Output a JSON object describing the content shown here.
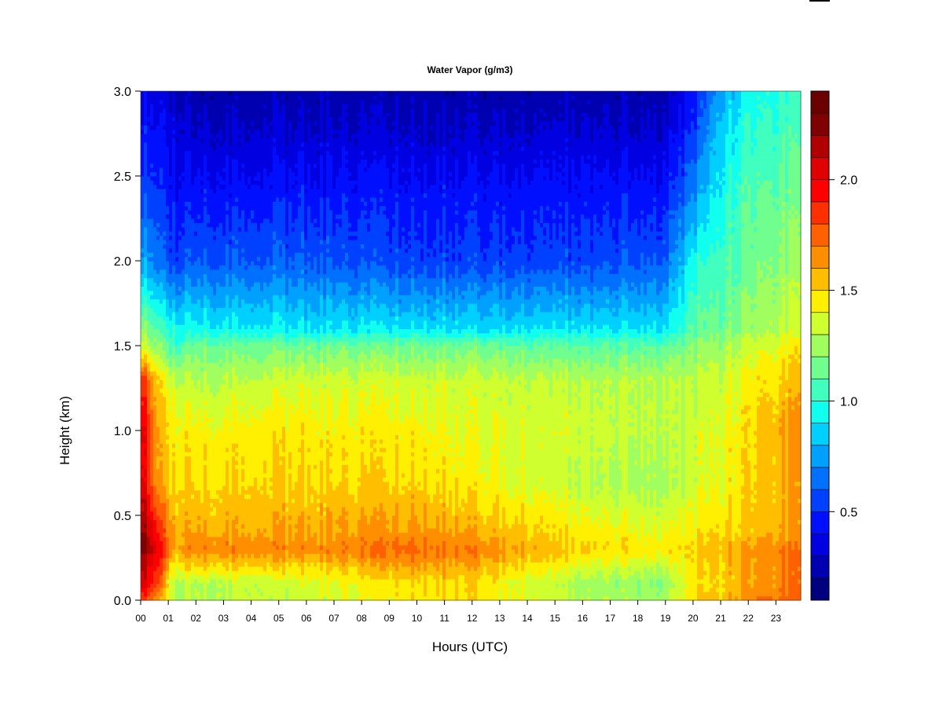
{
  "chart_data": {
    "type": "heatmap",
    "title": "Water Vapor (g/m3)",
    "xlabel": "Hours (UTC)",
    "ylabel": "Height (km)",
    "xlim": [
      0,
      23.9
    ],
    "ylim": [
      0.0,
      3.0
    ],
    "x_ticks": [
      "00",
      "01",
      "02",
      "03",
      "04",
      "05",
      "06",
      "07",
      "08",
      "09",
      "10",
      "11",
      "12",
      "13",
      "14",
      "15",
      "16",
      "17",
      "18",
      "19",
      "20",
      "21",
      "22",
      "23"
    ],
    "y_ticks": [
      "0.0",
      "0.5",
      "1.0",
      "1.5",
      "2.0",
      "2.5",
      "3.0"
    ],
    "colorbar": {
      "range": [
        0.1,
        2.4
      ],
      "ticks": [
        "0.5",
        "1.0",
        "1.5",
        "2.0"
      ],
      "tick_values": [
        0.5,
        1.0,
        1.5,
        2.0
      ],
      "levels": [
        0.1,
        0.2,
        0.3,
        0.4,
        0.5,
        0.6,
        0.7,
        0.8,
        0.9,
        1.0,
        1.1,
        1.2,
        1.3,
        1.4,
        1.5,
        1.6,
        1.7,
        1.8,
        1.9,
        2.0,
        2.1,
        2.2,
        2.3,
        2.4
      ],
      "colors": [
        "#00007f",
        "#0000b0",
        "#0000e0",
        "#0010ff",
        "#0040ff",
        "#0070ff",
        "#00a0ff",
        "#00d0ff",
        "#10ffef",
        "#40ffbf",
        "#70ff8f",
        "#a0ff5f",
        "#d0ff2f",
        "#ffef00",
        "#ffbf00",
        "#ff8f00",
        "#ff6000",
        "#ff3000",
        "#ff0000",
        "#e00000",
        "#b00000",
        "#7f0000",
        "#6a0000"
      ]
    },
    "profiles": [
      {
        "x": 0.0,
        "heights": [
          0.0,
          0.1,
          0.3,
          0.4,
          0.7,
          1.0,
          1.3,
          1.5,
          1.8,
          2.0,
          2.4,
          2.8,
          3.0
        ],
        "values": [
          1.9,
          2.1,
          2.3,
          2.3,
          2.1,
          2.1,
          1.9,
          1.4,
          1.0,
          0.8,
          0.6,
          0.45,
          0.4
        ]
      },
      {
        "x": 0.6,
        "heights": [
          0.0,
          0.1,
          0.3,
          0.4,
          0.7,
          1.0,
          1.3,
          1.5,
          1.8,
          2.0,
          2.4,
          2.8,
          3.0
        ],
        "values": [
          1.6,
          1.8,
          2.0,
          1.9,
          1.6,
          1.6,
          1.5,
          1.2,
          0.85,
          0.65,
          0.5,
          0.4,
          0.35
        ]
      },
      {
        "x": 1.2,
        "heights": [
          0.0,
          0.1,
          0.3,
          0.4,
          0.7,
          1.0,
          1.3,
          1.5,
          1.8,
          2.0,
          2.4,
          2.8,
          3.0
        ],
        "values": [
          1.3,
          1.3,
          1.6,
          1.6,
          1.5,
          1.45,
          1.35,
          1.05,
          0.75,
          0.55,
          0.45,
          0.35,
          0.3
        ]
      },
      {
        "x": 2.0,
        "heights": [
          0.0,
          0.1,
          0.3,
          0.4,
          0.7,
          1.0,
          1.3,
          1.5,
          1.6,
          2.0,
          2.4,
          2.8,
          3.0
        ],
        "values": [
          1.3,
          1.3,
          1.7,
          1.6,
          1.5,
          1.45,
          1.3,
          1.15,
          0.95,
          0.6,
          0.45,
          0.3,
          0.25
        ]
      },
      {
        "x": 6.0,
        "heights": [
          0.0,
          0.1,
          0.3,
          0.4,
          0.7,
          1.0,
          1.3,
          1.5,
          1.6,
          2.0,
          2.4,
          2.8,
          3.0
        ],
        "values": [
          1.35,
          1.35,
          1.65,
          1.6,
          1.5,
          1.45,
          1.35,
          1.15,
          0.9,
          0.6,
          0.45,
          0.3,
          0.25
        ]
      },
      {
        "x": 10.0,
        "heights": [
          0.0,
          0.1,
          0.3,
          0.4,
          0.7,
          1.0,
          1.3,
          1.5,
          1.6,
          2.0,
          2.4,
          2.8,
          3.0
        ],
        "values": [
          1.45,
          1.5,
          1.75,
          1.65,
          1.5,
          1.45,
          1.35,
          1.15,
          0.9,
          0.55,
          0.45,
          0.3,
          0.25
        ]
      },
      {
        "x": 12.0,
        "heights": [
          0.0,
          0.1,
          0.3,
          0.4,
          0.7,
          1.0,
          1.3,
          1.5,
          1.6,
          2.0,
          2.4,
          2.8,
          3.0
        ],
        "values": [
          1.5,
          1.5,
          1.7,
          1.6,
          1.45,
          1.4,
          1.35,
          1.15,
          0.9,
          0.55,
          0.45,
          0.3,
          0.25
        ]
      },
      {
        "x": 16.0,
        "heights": [
          0.0,
          0.1,
          0.3,
          0.4,
          0.7,
          1.0,
          1.3,
          1.5,
          1.6,
          2.0,
          2.4,
          2.8,
          3.0
        ],
        "values": [
          1.3,
          1.25,
          1.5,
          1.45,
          1.3,
          1.35,
          1.3,
          1.1,
          0.9,
          0.55,
          0.45,
          0.3,
          0.25
        ]
      },
      {
        "x": 19.0,
        "heights": [
          0.0,
          0.1,
          0.3,
          0.4,
          0.7,
          1.0,
          1.3,
          1.5,
          1.6,
          2.0,
          2.4,
          2.8,
          3.0
        ],
        "values": [
          1.25,
          1.2,
          1.45,
          1.4,
          1.25,
          1.3,
          1.3,
          1.1,
          0.9,
          0.6,
          0.45,
          0.3,
          0.25
        ]
      },
      {
        "x": 20.0,
        "heights": [
          0.0,
          0.1,
          0.3,
          0.4,
          0.7,
          1.0,
          1.3,
          1.5,
          1.6,
          2.0,
          2.4,
          2.8,
          3.0
        ],
        "values": [
          1.5,
          1.45,
          1.5,
          1.45,
          1.35,
          1.35,
          1.3,
          1.2,
          1.1,
          0.95,
          0.7,
          0.5,
          0.45
        ]
      },
      {
        "x": 21.0,
        "heights": [
          0.0,
          0.1,
          0.3,
          0.4,
          0.7,
          1.0,
          1.3,
          1.5,
          1.6,
          2.0,
          2.4,
          2.8,
          3.0
        ],
        "values": [
          1.55,
          1.5,
          1.55,
          1.5,
          1.4,
          1.4,
          1.35,
          1.25,
          1.15,
          1.05,
          0.95,
          0.85,
          0.75
        ]
      },
      {
        "x": 22.0,
        "heights": [
          0.0,
          0.1,
          0.3,
          0.4,
          0.7,
          1.0,
          1.3,
          1.5,
          1.6,
          2.0,
          2.4,
          2.8,
          3.0
        ],
        "values": [
          1.7,
          1.6,
          1.65,
          1.55,
          1.5,
          1.5,
          1.45,
          1.35,
          1.25,
          1.15,
          1.1,
          1.0,
          0.95
        ]
      },
      {
        "x": 23.9,
        "heights": [
          0.0,
          0.1,
          0.3,
          0.4,
          0.7,
          1.0,
          1.3,
          1.5,
          1.6,
          2.0,
          2.4,
          2.8,
          3.0
        ],
        "values": [
          1.75,
          1.7,
          1.7,
          1.6,
          1.6,
          1.65,
          1.55,
          1.45,
          1.35,
          1.25,
          1.15,
          1.05,
          1.05
        ]
      }
    ]
  }
}
